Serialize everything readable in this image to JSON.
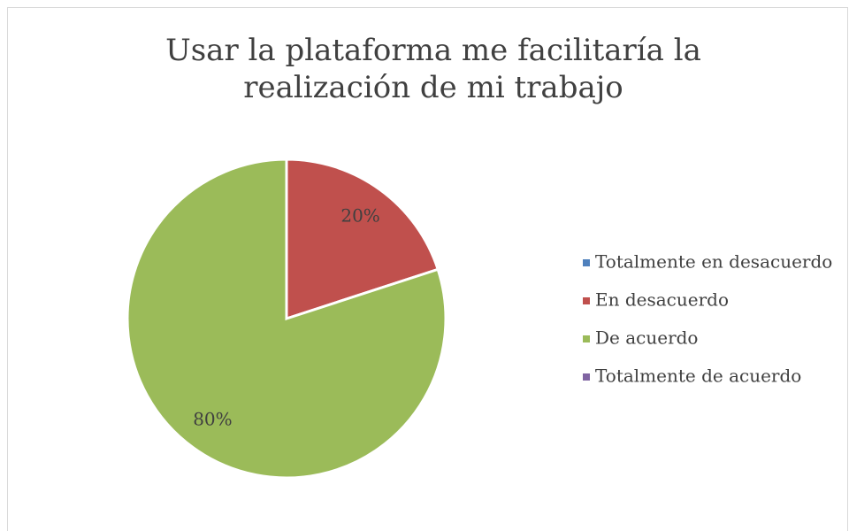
{
  "chart_data": {
    "type": "pie",
    "title": "Usar la plataforma me facilitaría la realización de mi trabajo",
    "categories": [
      "Totalmente en desacuerdo",
      "En desacuerdo",
      "De acuerdo",
      "Totalmente de acuerdo"
    ],
    "values": [
      0,
      20,
      80,
      0
    ],
    "value_labels": [
      null,
      "20%",
      "80%",
      null
    ],
    "colors": [
      "#4f81bd",
      "#c0504d",
      "#9bbb59",
      "#8064a2"
    ],
    "legend": "right"
  }
}
